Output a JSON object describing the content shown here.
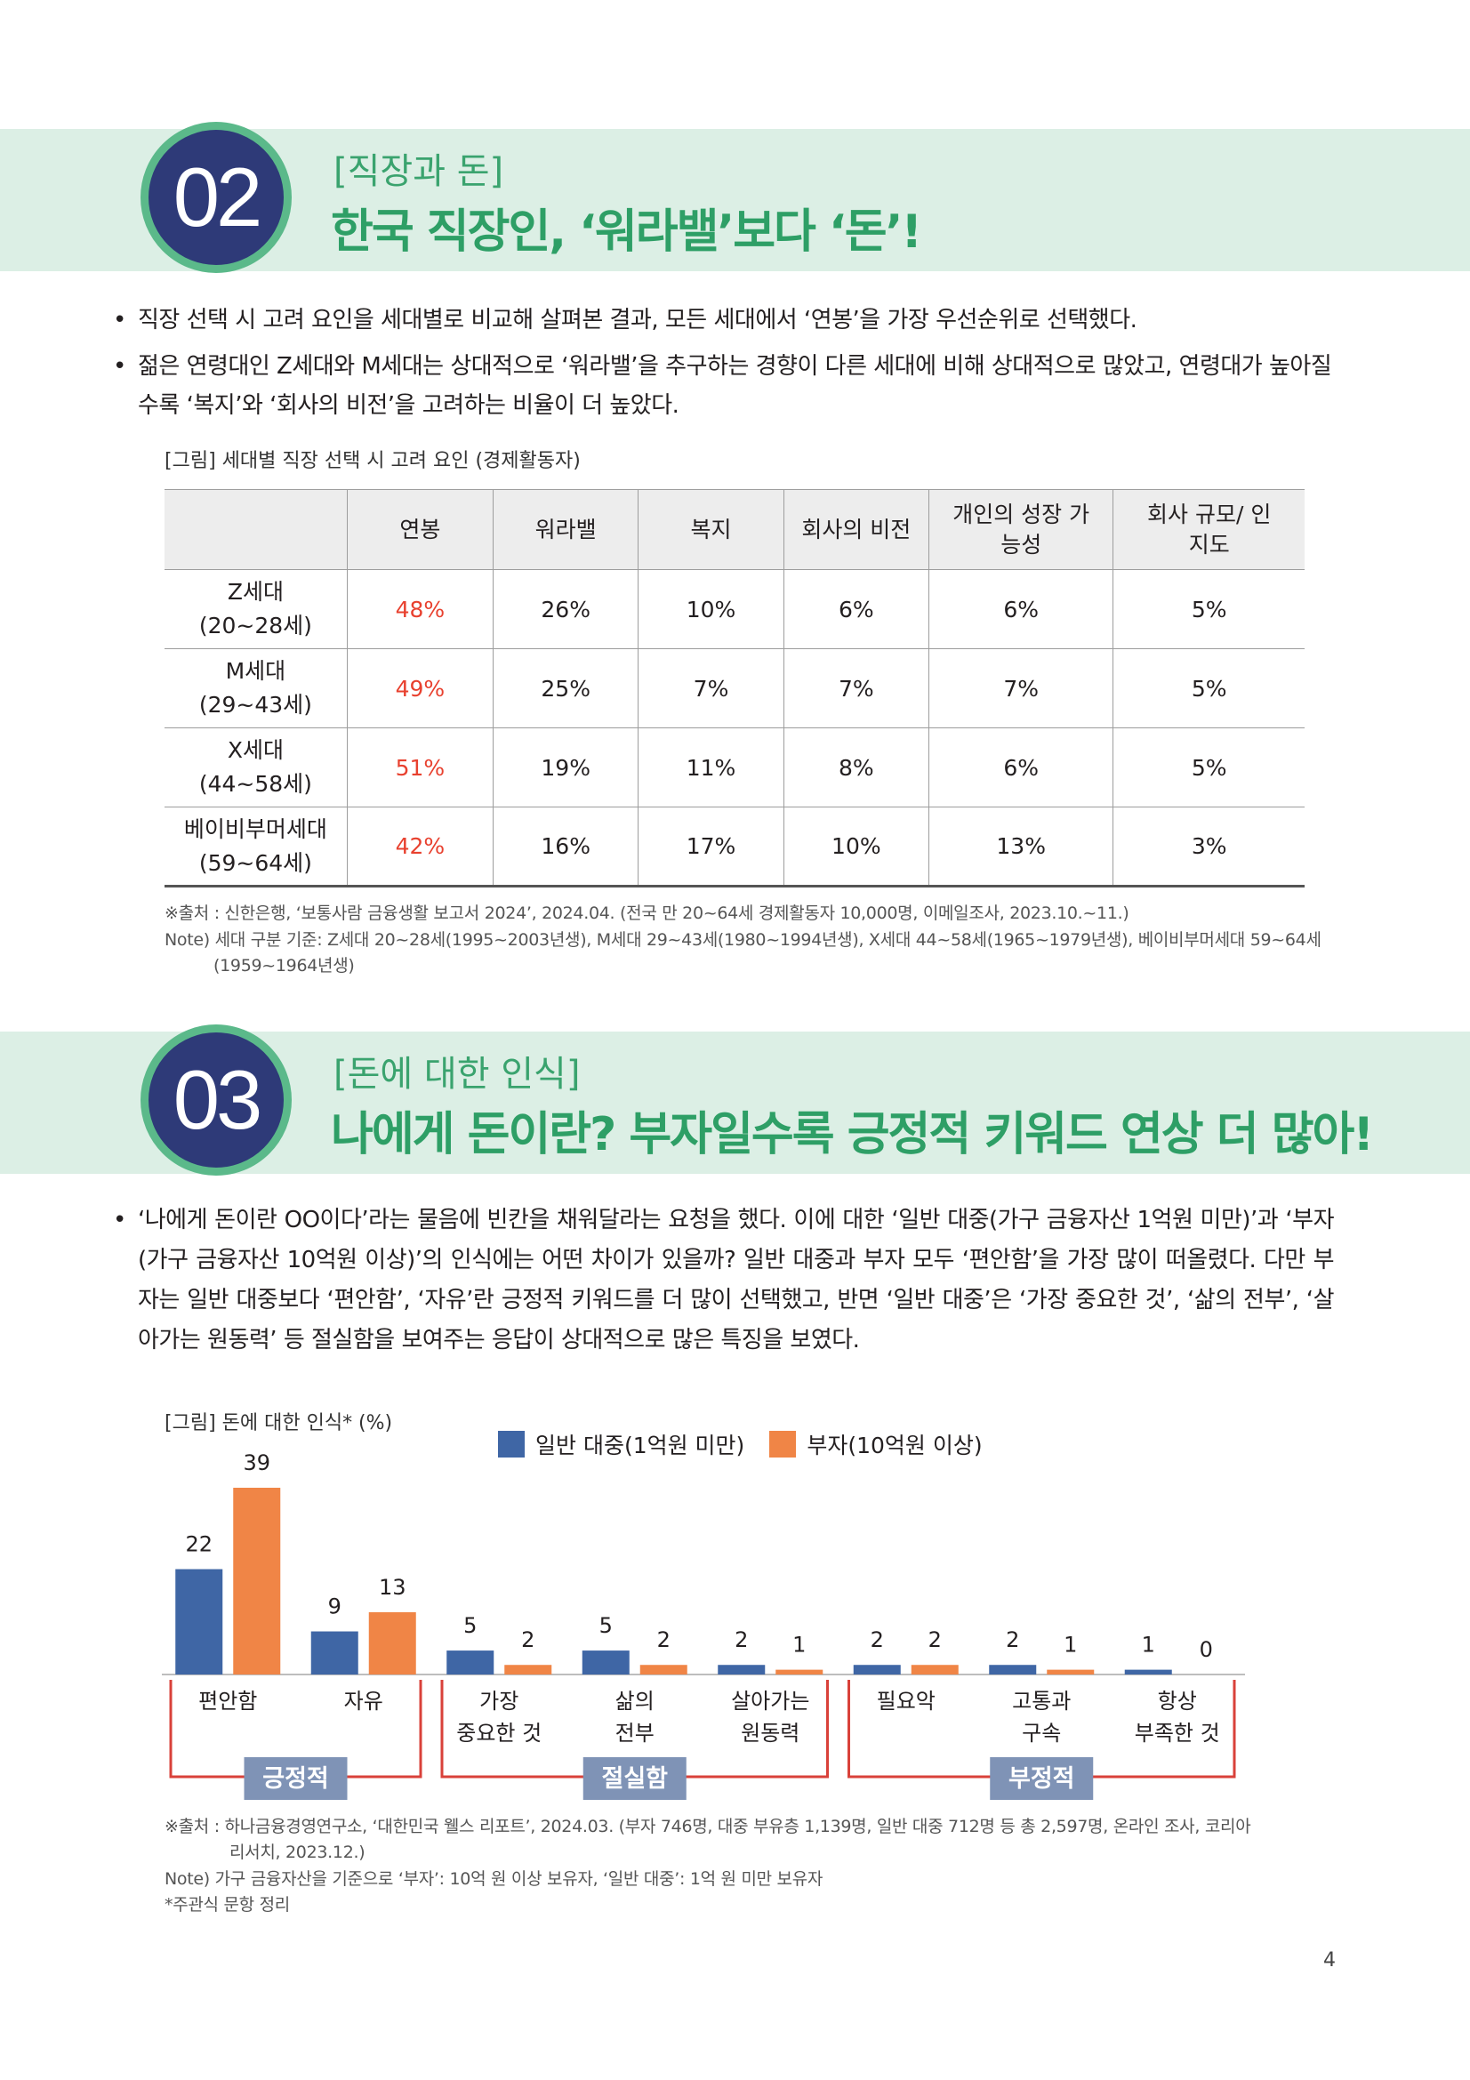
{
  "section2": {
    "number": "02",
    "subtitle": "[직장과 돈]",
    "title": "한국 직장인, ‘워라밸’보다 ‘돈’!",
    "bullets": [
      "직장 선택 시 고려 요인을 세대별로 비교해 살펴본 결과, 모든 세대에서 ‘연봉’을 가장 우선순위로 선택했다.",
      "젊은 연령대인 Z세대와 M세대는 상대적으로 ‘워라밸’을 추구하는 경향이 다른 세대에 비해 상대적으로 많았고, 연령대가 높아질수록 ‘복지’와 ‘회사의 비전’을 고려하는 비율이 더 높았다."
    ],
    "caption": "[그림] 세대별 직장 선택 시 고려 요인 (경제활동자)",
    "table": {
      "headers": [
        "",
        "연봉",
        "워라밸",
        "복지",
        "회사의 비전",
        "개인의 성장 가능성",
        "회사 규모/ 인지도"
      ],
      "rows": [
        {
          "gen": "Z세대",
          "range": "(20~28세)",
          "values": [
            "48%",
            "26%",
            "10%",
            "6%",
            "6%",
            "5%"
          ]
        },
        {
          "gen": "M세대",
          "range": "(29~43세)",
          "values": [
            "49%",
            "25%",
            "7%",
            "7%",
            "7%",
            "5%"
          ]
        },
        {
          "gen": "X세대",
          "range": "(44~58세)",
          "values": [
            "51%",
            "19%",
            "11%",
            "8%",
            "6%",
            "5%"
          ]
        },
        {
          "gen": "베이비부머세대",
          "range": "(59~64세)",
          "values": [
            "42%",
            "16%",
            "17%",
            "10%",
            "13%",
            "3%"
          ]
        }
      ]
    },
    "source": "※출처 : 신한은행, ‘보통사람 금융생활 보고서 2024’, 2024.04. (전국 만 20~64세 경제활동자 10,000명, 이메일조사, 2023.10.~11.)",
    "note_line1": "Note) 세대 구분 기준: Z세대 20~28세(1995~2003년생), M세대 29~43세(1980~1994년생), X세대 44~58세(1965~1979년생), 베이비부머세대 59~64세",
    "note_line2": "(1959~1964년생)"
  },
  "section3": {
    "number": "03",
    "subtitle": "[돈에 대한 인식]",
    "title": "나에게 돈이란? 부자일수록 긍정적 키워드 연상 더 많아!",
    "paragraph": "‘나에게 돈이란 OO이다’라는 물음에 빈칸을 채워달라는 요청을 했다. 이에 대한 ‘일반 대중(가구 금융자산 1억원 미만)’과 ‘부자(가구 금융자산 10억원 이상)’의 인식에는 어떤 차이가 있을까? 일반 대중과 부자 모두 ‘편안함’을 가장 많이 떠올렸다. 다만 부자는 일반 대중보다 ‘편안함’, ‘자유’란 긍정적 키워드를 더 많이 선택했고, 반면 ‘일반 대중’은 ‘가장 중요한 것’, ‘삶의 전부’, ‘살아가는 원동력’ 등 절실함을 보여주는 응답이 상대적으로 많은 특징을 보였다.",
    "caption": "[그림] 돈에 대한 인식* (%)",
    "source_line1": "※출처 : 하나금융경영연구소, ‘대한민국 웰스 리포트’, 2024.03. (부자 746명, 대중 부유층 1,139명, 일반 대중 712명 등 총 2,597명, 온라인 조사, 코리아",
    "source_line2": "리서치, 2023.12.)",
    "note": "Note) 가구 금융자산을 기준으로 ‘부자’: 10억 원 이상 보유자, ‘일반 대중’: 1억 원 미만 보유자",
    "footnote": "*주관식 문항 정리"
  },
  "chart_data": {
    "type": "bar",
    "categories": [
      [
        "편안함"
      ],
      [
        "자유"
      ],
      [
        "가장",
        "중요한 것"
      ],
      [
        "삶의",
        "전부"
      ],
      [
        "살아가는",
        "원동력"
      ],
      [
        "필요악"
      ],
      [
        "고통과",
        "구속"
      ],
      [
        "항상",
        "부족한 것"
      ]
    ],
    "series": [
      {
        "name": "일반 대중(1억원 미만)",
        "values": [
          22,
          9,
          5,
          5,
          2,
          2,
          2,
          1
        ],
        "color": "#3f66a5"
      },
      {
        "name": "부자(10억원 이상)",
        "values": [
          39,
          13,
          2,
          2,
          1,
          2,
          1,
          0
        ],
        "color": "#f08546"
      }
    ],
    "groups": [
      {
        "label": "긍정적",
        "span": [
          0,
          1
        ]
      },
      {
        "label": "절실함",
        "span": [
          2,
          4
        ]
      },
      {
        "label": "부정적",
        "span": [
          5,
          7
        ]
      }
    ],
    "ylim": [
      0,
      39
    ],
    "legend": "top",
    "group_color": "#d9413a",
    "group_label_bg": "#7f93b6"
  },
  "page_number": "4"
}
